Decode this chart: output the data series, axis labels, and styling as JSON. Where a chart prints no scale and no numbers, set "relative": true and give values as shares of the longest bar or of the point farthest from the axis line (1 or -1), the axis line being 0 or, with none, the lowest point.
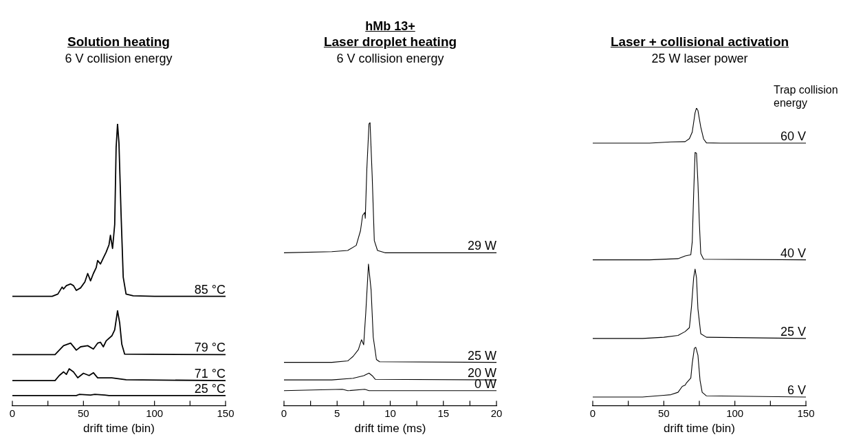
{
  "chart_data": [
    {
      "type": "line",
      "title": "Solution heating",
      "subtitle": "6 V collision energy",
      "xlabel": "drift time (bin)",
      "relative": true,
      "xlim": [
        0,
        150
      ],
      "xticks": [
        0,
        {
          "value": 25,
          "label": null
        },
        50,
        {
          "value": 75,
          "label": null
        },
        100,
        {
          "value": 125,
          "label": null
        },
        150
      ],
      "marker": "none",
      "line_style": "solid",
      "legend": false,
      "grid": false,
      "series": [
        {
          "name": "85 °C",
          "color": "#000000",
          "x": [
            0,
            28,
            32,
            35,
            36,
            38,
            41,
            43,
            45,
            48,
            51,
            53,
            55,
            57,
            59,
            60,
            62,
            64,
            66,
            68,
            69,
            70.5,
            72,
            73,
            74,
            75,
            76.5,
            78,
            80,
            85,
            100,
            150
          ],
          "values": [
            0.388,
            0.388,
            0.396,
            0.421,
            0.414,
            0.426,
            0.432,
            0.426,
            0.409,
            0.418,
            0.439,
            0.469,
            0.443,
            0.469,
            0.49,
            0.515,
            0.503,
            0.524,
            0.545,
            0.571,
            0.605,
            0.558,
            0.643,
            0.915,
            1,
            0.932,
            0.677,
            0.456,
            0.396,
            0.39,
            0.388,
            0.388
          ]
        },
        {
          "name": "79 °C",
          "color": "#000000",
          "x": [
            0,
            30,
            33,
            36,
            41,
            45,
            48,
            53,
            57,
            60,
            62,
            64,
            66,
            70,
            72,
            74,
            75.5,
            77,
            79,
            150
          ],
          "values": [
            0.181,
            0.181,
            0.197,
            0.213,
            0.222,
            0.197,
            0.209,
            0.213,
            0.201,
            0.222,
            0.225,
            0.209,
            0.23,
            0.248,
            0.269,
            0.337,
            0.294,
            0.218,
            0.183,
            0.181
          ]
        },
        {
          "name": "71 °C",
          "color": "#000000",
          "x": [
            0,
            30,
            33,
            36,
            38,
            40,
            43,
            46,
            50,
            54,
            57,
            60,
            70,
            80,
            150
          ],
          "values": [
            0.089,
            0.089,
            0.107,
            0.12,
            0.111,
            0.131,
            0.12,
            0.099,
            0.115,
            0.107,
            0.117,
            0.099,
            0.099,
            0.092,
            0.089
          ]
        },
        {
          "name": "25 °C",
          "color": "#000000",
          "x": [
            0,
            45,
            47,
            55,
            58,
            65,
            68,
            150
          ],
          "values": [
            0.036,
            0.036,
            0.04,
            0.038,
            0.04,
            0.038,
            0.036,
            0.036
          ]
        }
      ]
    },
    {
      "type": "line",
      "title": "Laser droplet heating",
      "subtitle": "6 V collision energy",
      "annotations": [
        "hMb 13+"
      ],
      "xlabel": "drift time (ms)",
      "relative": true,
      "xlim": [
        0,
        20
      ],
      "xticks": [
        0,
        {
          "value": 2.5,
          "label": null
        },
        5,
        {
          "value": 7.5,
          "label": null
        },
        10,
        {
          "value": 12.5,
          "label": null
        },
        15,
        {
          "value": 17.5,
          "label": null
        },
        20
      ],
      "marker": "none",
      "line_style": "solid",
      "legend": false,
      "grid": false,
      "series": [
        {
          "name": "29 W",
          "color": "#000000",
          "x": [
            0,
            4.5,
            6,
            6.8,
            7.2,
            7.4,
            7.6,
            7.65,
            7.8,
            8,
            8.1,
            8.3,
            8.5,
            8.8,
            9.5,
            20
          ],
          "values": [
            0.54,
            0.544,
            0.548,
            0.566,
            0.618,
            0.672,
            0.682,
            0.662,
            0.838,
            0.995,
            1,
            0.812,
            0.583,
            0.548,
            0.54,
            0.54
          ]
        },
        {
          "name": "25 W",
          "color": "#000000",
          "x": [
            0,
            4.5,
            6,
            6.5,
            7,
            7.3,
            7.5,
            7.7,
            7.95,
            8.2,
            8.4,
            8.7,
            9,
            20
          ],
          "values": [
            0.153,
            0.153,
            0.158,
            0.174,
            0.198,
            0.233,
            0.215,
            0.33,
            0.5,
            0.408,
            0.242,
            0.163,
            0.155,
            0.153
          ]
        },
        {
          "name": "20 W",
          "color": "#000000",
          "x": [
            0,
            4.5,
            6.5,
            7.5,
            8,
            8.3,
            8.6,
            20
          ],
          "values": [
            0.091,
            0.091,
            0.097,
            0.106,
            0.115,
            0.106,
            0.093,
            0.091
          ]
        },
        {
          "name": "0 W",
          "color": "#000000",
          "x": [
            0,
            5.5,
            6,
            7.6,
            8,
            20
          ],
          "values": [
            0.053,
            0.058,
            0.053,
            0.058,
            0.053,
            0.053
          ]
        }
      ]
    },
    {
      "type": "line",
      "title": "Laser + collisional activation",
      "subtitle": "25 W laser power",
      "annotations": [
        "Trap collision energy"
      ],
      "xlabel": "drift time (bin)",
      "relative": true,
      "xlim": [
        0,
        150
      ],
      "xticks": [
        0,
        {
          "value": 25,
          "label": null
        },
        50,
        {
          "value": 75,
          "label": null
        },
        100,
        {
          "value": 125,
          "label": null
        },
        150
      ],
      "marker": "none",
      "line_style": "solid",
      "legend": false,
      "grid": false,
      "series": [
        {
          "name": "60 V",
          "color": "#000000",
          "x": [
            0,
            40,
            55,
            65,
            68,
            70,
            72,
            73,
            74,
            76,
            78,
            80,
            90,
            150
          ],
          "values": [
            0.882,
            0.882,
            0.886,
            0.887,
            0.897,
            0.919,
            0.984,
            1,
            0.992,
            0.936,
            0.896,
            0.883,
            0.882,
            0.882
          ]
        },
        {
          "name": "40 V",
          "color": "#000000",
          "x": [
            0,
            40,
            60,
            65,
            69,
            70,
            71,
            72,
            73,
            74,
            75,
            76,
            78,
            150
          ],
          "values": [
            0.49,
            0.49,
            0.494,
            0.503,
            0.507,
            0.55,
            0.712,
            0.851,
            0.848,
            0.751,
            0.615,
            0.511,
            0.492,
            0.49
          ]
        },
        {
          "name": "25 V",
          "color": "#000000",
          "x": [
            0,
            35,
            50,
            60,
            65,
            68,
            69.5,
            71,
            72,
            73,
            74,
            76,
            80,
            150
          ],
          "values": [
            0.226,
            0.226,
            0.23,
            0.236,
            0.249,
            0.262,
            0.334,
            0.43,
            0.459,
            0.43,
            0.326,
            0.242,
            0.23,
            0.226
          ]
        },
        {
          "name": "6 V",
          "color": "#000000",
          "x": [
            0,
            35,
            50,
            55,
            60,
            63,
            65,
            66,
            69,
            70,
            71.5,
            72.5,
            74,
            75.5,
            77,
            80,
            150
          ],
          "values": [
            0.029,
            0.029,
            0.035,
            0.037,
            0.045,
            0.065,
            0.069,
            0.077,
            0.093,
            0.142,
            0.193,
            0.196,
            0.17,
            0.085,
            0.045,
            0.033,
            0.029
          ]
        }
      ]
    }
  ]
}
